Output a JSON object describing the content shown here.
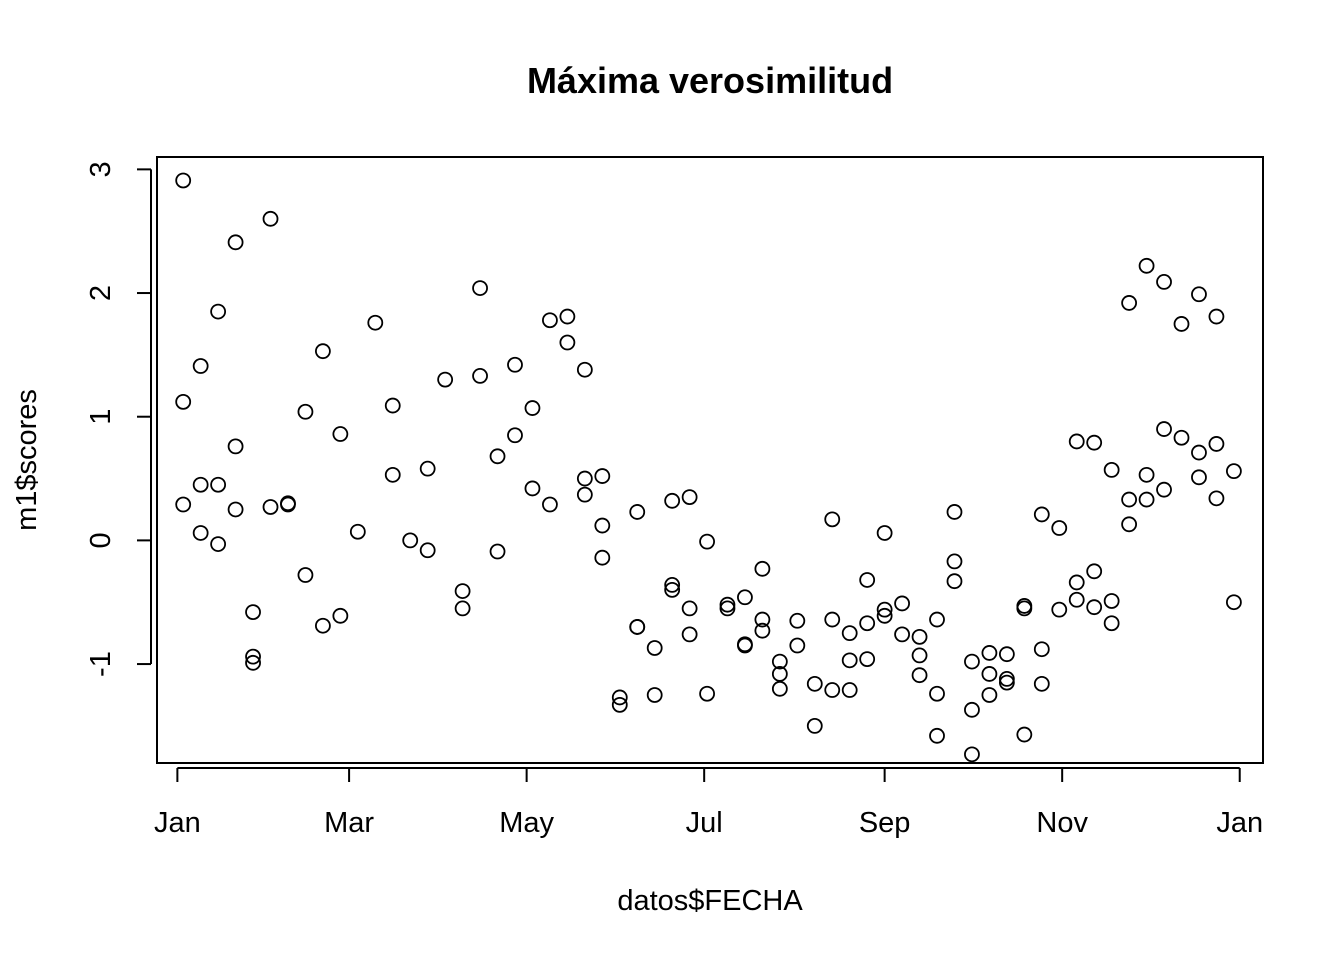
{
  "chart_data": {
    "type": "scatter",
    "title": "Máxima verosimilitud",
    "xlabel": "datos$FECHA",
    "ylabel": "m1$scores",
    "x_ticks": [
      {
        "label": "Jan",
        "date": "2022-01-01"
      },
      {
        "label": "Mar",
        "date": "2022-03-01"
      },
      {
        "label": "May",
        "date": "2022-05-01"
      },
      {
        "label": "Jul",
        "date": "2022-07-01"
      },
      {
        "label": "Sep",
        "date": "2022-09-01"
      },
      {
        "label": "Nov",
        "date": "2022-11-01"
      },
      {
        "label": "Jan",
        "date": "2023-01-01"
      }
    ],
    "y_ticks": [
      "-1",
      "0",
      "1",
      "2",
      "3"
    ],
    "xlim": [
      "2021-12-25",
      "2023-01-09"
    ],
    "ylim": [
      -1.8,
      3.1
    ],
    "points": [
      {
        "x": "2022-01-03",
        "y": 2.91
      },
      {
        "x": "2022-01-03",
        "y": 1.12
      },
      {
        "x": "2022-01-03",
        "y": 0.29
      },
      {
        "x": "2022-01-09",
        "y": 1.41
      },
      {
        "x": "2022-01-09",
        "y": 0.45
      },
      {
        "x": "2022-01-09",
        "y": 0.06
      },
      {
        "x": "2022-01-15",
        "y": 1.85
      },
      {
        "x": "2022-01-15",
        "y": 0.45
      },
      {
        "x": "2022-01-15",
        "y": -0.03
      },
      {
        "x": "2022-01-21",
        "y": 2.41
      },
      {
        "x": "2022-01-21",
        "y": 0.76
      },
      {
        "x": "2022-01-21",
        "y": 0.25
      },
      {
        "x": "2022-01-27",
        "y": -0.58
      },
      {
        "x": "2022-01-27",
        "y": -0.94
      },
      {
        "x": "2022-01-27",
        "y": -0.99
      },
      {
        "x": "2022-02-02",
        "y": 2.6
      },
      {
        "x": "2022-02-02",
        "y": 0.27
      },
      {
        "x": "2022-02-08",
        "y": 0.3
      },
      {
        "x": "2022-02-08",
        "y": 0.29
      },
      {
        "x": "2022-02-14",
        "y": 1.04
      },
      {
        "x": "2022-02-14",
        "y": -0.28
      },
      {
        "x": "2022-02-20",
        "y": 1.53
      },
      {
        "x": "2022-02-20",
        "y": -0.69
      },
      {
        "x": "2022-02-26",
        "y": 0.86
      },
      {
        "x": "2022-02-26",
        "y": -0.61
      },
      {
        "x": "2022-03-04",
        "y": 0.07
      },
      {
        "x": "2022-03-10",
        "y": 1.76
      },
      {
        "x": "2022-03-16",
        "y": 1.09
      },
      {
        "x": "2022-03-16",
        "y": 0.53
      },
      {
        "x": "2022-03-22",
        "y": 0.0
      },
      {
        "x": "2022-03-28",
        "y": 0.58
      },
      {
        "x": "2022-03-28",
        "y": -0.08
      },
      {
        "x": "2022-04-03",
        "y": 1.3
      },
      {
        "x": "2022-04-09",
        "y": -0.41
      },
      {
        "x": "2022-04-09",
        "y": -0.55
      },
      {
        "x": "2022-04-15",
        "y": 2.04
      },
      {
        "x": "2022-04-15",
        "y": 1.33
      },
      {
        "x": "2022-04-21",
        "y": 0.68
      },
      {
        "x": "2022-04-21",
        "y": -0.09
      },
      {
        "x": "2022-04-27",
        "y": 1.42
      },
      {
        "x": "2022-04-27",
        "y": 0.85
      },
      {
        "x": "2022-05-03",
        "y": 1.07
      },
      {
        "x": "2022-05-03",
        "y": 0.42
      },
      {
        "x": "2022-05-09",
        "y": 1.78
      },
      {
        "x": "2022-05-09",
        "y": 0.29
      },
      {
        "x": "2022-05-15",
        "y": 1.81
      },
      {
        "x": "2022-05-15",
        "y": 1.6
      },
      {
        "x": "2022-05-21",
        "y": 1.38
      },
      {
        "x": "2022-05-21",
        "y": 0.5
      },
      {
        "x": "2022-05-21",
        "y": 0.37
      },
      {
        "x": "2022-05-27",
        "y": 0.52
      },
      {
        "x": "2022-05-27",
        "y": 0.12
      },
      {
        "x": "2022-05-27",
        "y": -0.14
      },
      {
        "x": "2022-06-02",
        "y": -1.27
      },
      {
        "x": "2022-06-02",
        "y": -1.33
      },
      {
        "x": "2022-06-08",
        "y": 0.23
      },
      {
        "x": "2022-06-08",
        "y": -0.7
      },
      {
        "x": "2022-06-08",
        "y": -0.7
      },
      {
        "x": "2022-06-14",
        "y": -0.87
      },
      {
        "x": "2022-06-14",
        "y": -1.25
      },
      {
        "x": "2022-06-20",
        "y": 0.32
      },
      {
        "x": "2022-06-20",
        "y": -0.36
      },
      {
        "x": "2022-06-20",
        "y": -0.4
      },
      {
        "x": "2022-06-26",
        "y": 0.35
      },
      {
        "x": "2022-06-26",
        "y": -0.55
      },
      {
        "x": "2022-06-26",
        "y": -0.76
      },
      {
        "x": "2022-07-02",
        "y": -0.01
      },
      {
        "x": "2022-07-02",
        "y": -1.24
      },
      {
        "x": "2022-07-09",
        "y": -0.52
      },
      {
        "x": "2022-07-09",
        "y": -0.55
      },
      {
        "x": "2022-07-15",
        "y": -0.46
      },
      {
        "x": "2022-07-15",
        "y": -0.84
      },
      {
        "x": "2022-07-15",
        "y": -0.85
      },
      {
        "x": "2022-07-21",
        "y": -0.23
      },
      {
        "x": "2022-07-21",
        "y": -0.64
      },
      {
        "x": "2022-07-21",
        "y": -0.73
      },
      {
        "x": "2022-07-27",
        "y": -0.98
      },
      {
        "x": "2022-07-27",
        "y": -1.08
      },
      {
        "x": "2022-07-27",
        "y": -1.2
      },
      {
        "x": "2022-08-02",
        "y": -0.65
      },
      {
        "x": "2022-08-02",
        "y": -0.85
      },
      {
        "x": "2022-08-08",
        "y": -1.16
      },
      {
        "x": "2022-08-08",
        "y": -1.5
      },
      {
        "x": "2022-08-14",
        "y": 0.17
      },
      {
        "x": "2022-08-14",
        "y": -0.64
      },
      {
        "x": "2022-08-14",
        "y": -1.21
      },
      {
        "x": "2022-08-20",
        "y": -0.75
      },
      {
        "x": "2022-08-20",
        "y": -0.97
      },
      {
        "x": "2022-08-20",
        "y": -1.21
      },
      {
        "x": "2022-08-26",
        "y": -0.32
      },
      {
        "x": "2022-08-26",
        "y": -0.67
      },
      {
        "x": "2022-08-26",
        "y": -0.96
      },
      {
        "x": "2022-09-01",
        "y": 0.06
      },
      {
        "x": "2022-09-01",
        "y": -0.56
      },
      {
        "x": "2022-09-01",
        "y": -0.61
      },
      {
        "x": "2022-09-07",
        "y": -0.51
      },
      {
        "x": "2022-09-07",
        "y": -0.76
      },
      {
        "x": "2022-09-13",
        "y": -0.78
      },
      {
        "x": "2022-09-13",
        "y": -0.93
      },
      {
        "x": "2022-09-13",
        "y": -1.09
      },
      {
        "x": "2022-09-19",
        "y": -0.64
      },
      {
        "x": "2022-09-19",
        "y": -1.24
      },
      {
        "x": "2022-09-19",
        "y": -1.58
      },
      {
        "x": "2022-09-25",
        "y": 0.23
      },
      {
        "x": "2022-09-25",
        "y": -0.17
      },
      {
        "x": "2022-09-25",
        "y": -0.33
      },
      {
        "x": "2022-10-01",
        "y": -0.98
      },
      {
        "x": "2022-10-01",
        "y": -1.37
      },
      {
        "x": "2022-10-01",
        "y": -1.73
      },
      {
        "x": "2022-10-07",
        "y": -0.91
      },
      {
        "x": "2022-10-07",
        "y": -1.08
      },
      {
        "x": "2022-10-07",
        "y": -1.25
      },
      {
        "x": "2022-10-13",
        "y": -0.92
      },
      {
        "x": "2022-10-13",
        "y": -1.12
      },
      {
        "x": "2022-10-13",
        "y": -1.15
      },
      {
        "x": "2022-10-19",
        "y": -0.53
      },
      {
        "x": "2022-10-19",
        "y": -0.55
      },
      {
        "x": "2022-10-19",
        "y": -1.57
      },
      {
        "x": "2022-10-25",
        "y": 0.21
      },
      {
        "x": "2022-10-25",
        "y": -0.88
      },
      {
        "x": "2022-10-25",
        "y": -1.16
      },
      {
        "x": "2022-10-31",
        "y": 0.1
      },
      {
        "x": "2022-10-31",
        "y": -0.56
      },
      {
        "x": "2022-11-06",
        "y": 0.8
      },
      {
        "x": "2022-11-06",
        "y": -0.34
      },
      {
        "x": "2022-11-06",
        "y": -0.48
      },
      {
        "x": "2022-11-12",
        "y": 0.79
      },
      {
        "x": "2022-11-12",
        "y": -0.25
      },
      {
        "x": "2022-11-12",
        "y": -0.54
      },
      {
        "x": "2022-11-18",
        "y": 0.57
      },
      {
        "x": "2022-11-18",
        "y": -0.49
      },
      {
        "x": "2022-11-18",
        "y": -0.67
      },
      {
        "x": "2022-11-24",
        "y": 1.92
      },
      {
        "x": "2022-11-24",
        "y": 0.33
      },
      {
        "x": "2022-11-24",
        "y": 0.13
      },
      {
        "x": "2022-11-30",
        "y": 2.22
      },
      {
        "x": "2022-11-30",
        "y": 0.53
      },
      {
        "x": "2022-11-30",
        "y": 0.33
      },
      {
        "x": "2022-12-06",
        "y": 2.09
      },
      {
        "x": "2022-12-06",
        "y": 0.9
      },
      {
        "x": "2022-12-06",
        "y": 0.41
      },
      {
        "x": "2022-12-12",
        "y": 1.75
      },
      {
        "x": "2022-12-12",
        "y": 0.83
      },
      {
        "x": "2022-12-18",
        "y": 1.99
      },
      {
        "x": "2022-12-18",
        "y": 0.71
      },
      {
        "x": "2022-12-18",
        "y": 0.51
      },
      {
        "x": "2022-12-24",
        "y": 1.81
      },
      {
        "x": "2022-12-24",
        "y": 0.78
      },
      {
        "x": "2022-12-24",
        "y": 0.34
      },
      {
        "x": "2022-12-30",
        "y": 0.56
      },
      {
        "x": "2022-12-30",
        "y": -0.5
      }
    ]
  }
}
